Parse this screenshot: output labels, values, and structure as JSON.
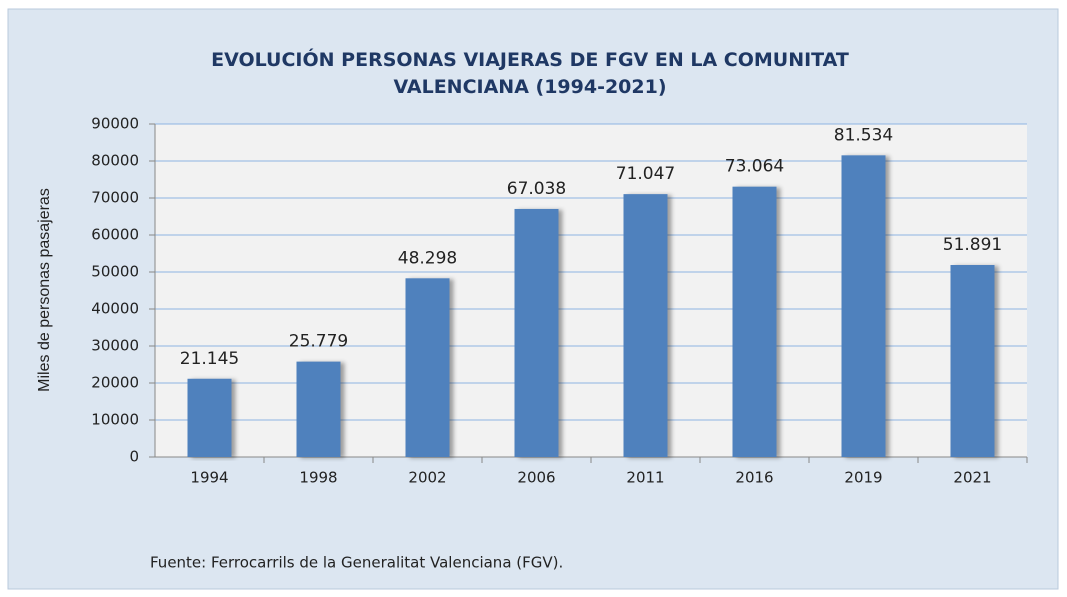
{
  "chart_data": {
    "type": "bar",
    "title": "EVOLUCIÓN PERSONAS VIAJERAS DE FGV EN LA COMUNITAT VALENCIANA (1994-2021)",
    "y_label": "Miles de personas pasajeras",
    "source": "Fuente: Ferrocarrils de la Generalitat Valenciana (FGV).",
    "categories": [
      "1994",
      "1998",
      "2002",
      "2006",
      "2011",
      "2016",
      "2019",
      "2021"
    ],
    "values": [
      21145,
      25779,
      48298,
      67038,
      71047,
      73064,
      81534,
      51891
    ],
    "value_labels": [
      "21.145",
      "25.779",
      "48.298",
      "67.038",
      "71.047",
      "73.064",
      "81.534",
      "51.891"
    ],
    "color": "#4f81bd",
    "ylim": [
      0,
      90000
    ],
    "yticks": [
      0,
      10000,
      20000,
      30000,
      40000,
      50000,
      60000,
      70000,
      80000,
      90000
    ],
    "grid": true
  }
}
